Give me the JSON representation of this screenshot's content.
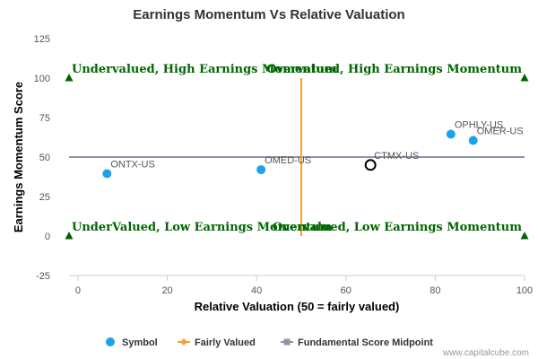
{
  "chart_data": {
    "type": "scatter",
    "title": "Earnings Momentum Vs Relative Valuation",
    "xlabel": "Relative Valuation (50 = fairly valued)",
    "ylabel": "Earnings Momentum Score",
    "xlim": [
      -2,
      100
    ],
    "ylim": [
      -25,
      125
    ],
    "x_ticks": [
      0,
      20,
      40,
      60,
      80,
      100
    ],
    "y_ticks": [
      -25,
      0,
      25,
      50,
      75,
      100,
      125
    ],
    "grid": false,
    "points": [
      {
        "label": "ONTX-US",
        "x": 6.5,
        "y": 39.5,
        "highlight": false
      },
      {
        "label": "OMED-US",
        "x": 41,
        "y": 42,
        "highlight": false
      },
      {
        "label": "OPHLY-US",
        "x": 83.5,
        "y": 64.5,
        "highlight": false
      },
      {
        "label": "OMER-US",
        "x": 88.5,
        "y": 60.5,
        "highlight": false
      },
      {
        "label": "CTMX-US",
        "x": 65.5,
        "y": 45,
        "highlight": true
      }
    ],
    "fairly_valued_line": {
      "x": 50,
      "y_range": [
        0,
        100
      ]
    },
    "midpoint_line": {
      "y": 50,
      "x_range": [
        -2,
        100
      ]
    },
    "corner_markers": [
      {
        "x": -2,
        "y": 100
      },
      {
        "x": 100,
        "y": 100
      },
      {
        "x": -2,
        "y": 0
      },
      {
        "x": 100,
        "y": 0
      }
    ],
    "quadrant_labels": {
      "top_left": "Undervalued, High Earnings Momentum",
      "top_right": "Overvalued, High Earnings Momentum",
      "bottom_left": "UnderValued, Low Earnings Momentum",
      "bottom_right": "Overvalued, Low Earnings Momentum"
    },
    "legend_position": "bottom-center",
    "legend": [
      {
        "name": "Symbol",
        "marker": "circle",
        "color": "#1aa3e8"
      },
      {
        "name": "Fairly Valued",
        "marker": "diamond-line",
        "color": "#f7a035"
      },
      {
        "name": "Fundamental Score Midpoint",
        "marker": "square-line",
        "color": "#8c95a6"
      }
    ],
    "colors": {
      "symbol": "#1aa3e8",
      "fairly_valued": "#f7a035",
      "midpoint": "#8c95a6",
      "quadrant_text": "#006600",
      "corner_marker": "#006600"
    }
  },
  "credit": "www.capitalcube.com"
}
